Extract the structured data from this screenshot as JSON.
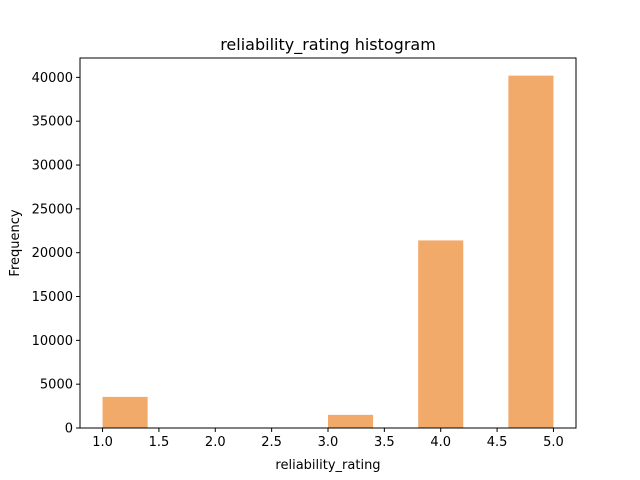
{
  "chart_data": {
    "type": "bar",
    "title": "reliability_rating histogram",
    "xlabel": "reliability_rating",
    "ylabel": "Frequency",
    "bar_color": "#f2aa6b",
    "bins": [
      {
        "x0": 1.0,
        "x1": 1.4,
        "count": 3550
      },
      {
        "x0": 1.4,
        "x1": 1.8,
        "count": 0
      },
      {
        "x0": 1.8,
        "x1": 2.2,
        "count": 0
      },
      {
        "x0": 2.2,
        "x1": 2.6,
        "count": 0
      },
      {
        "x0": 2.6,
        "x1": 3.0,
        "count": 0
      },
      {
        "x0": 3.0,
        "x1": 3.4,
        "count": 1500
      },
      {
        "x0": 3.4,
        "x1": 3.8,
        "count": 0
      },
      {
        "x0": 3.8,
        "x1": 4.2,
        "count": 21400
      },
      {
        "x0": 4.2,
        "x1": 4.6,
        "count": 0
      },
      {
        "x0": 4.6,
        "x1": 5.0,
        "count": 40200
      }
    ],
    "xlim": [
      0.8,
      5.2
    ],
    "ylim": [
      0,
      42210
    ],
    "xticks": [
      1.0,
      1.5,
      2.0,
      2.5,
      3.0,
      3.5,
      4.0,
      4.5,
      5.0
    ],
    "xtick_labels": [
      "1.0",
      "1.5",
      "2.0",
      "2.5",
      "3.0",
      "3.5",
      "4.0",
      "4.5",
      "5.0"
    ],
    "yticks": [
      0,
      5000,
      10000,
      15000,
      20000,
      25000,
      30000,
      35000,
      40000
    ],
    "ytick_labels": [
      "0",
      "5000",
      "10000",
      "15000",
      "20000",
      "25000",
      "30000",
      "35000",
      "40000"
    ],
    "grid": false,
    "legend": "none"
  }
}
